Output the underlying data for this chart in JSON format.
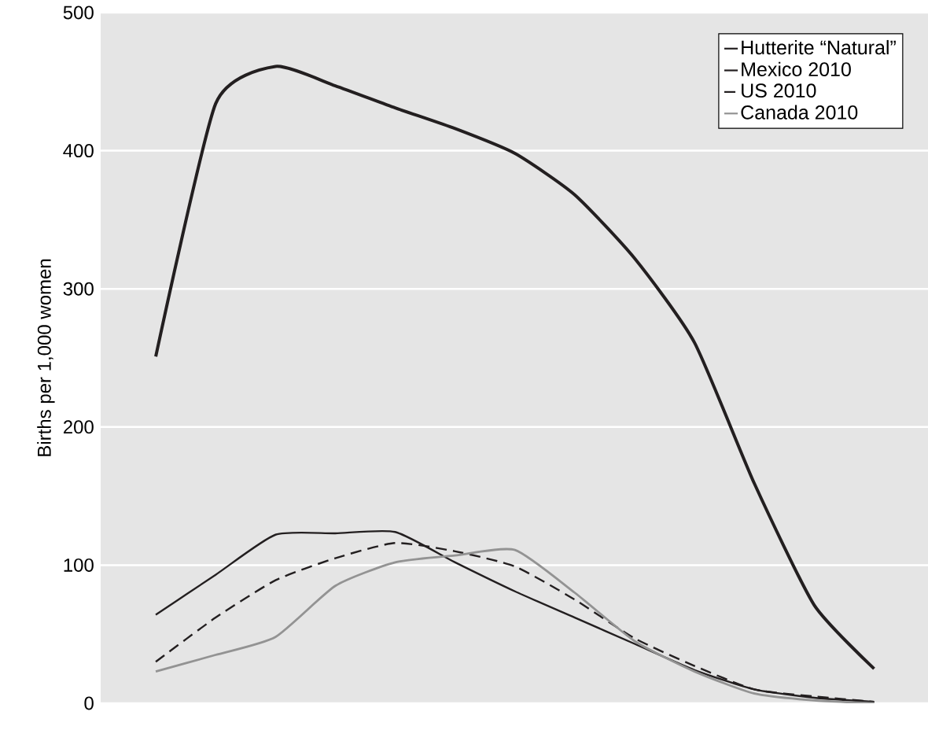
{
  "chart_data": {
    "type": "line",
    "ylabel": "Births per 1,000 women",
    "categories": [
      null,
      null,
      null,
      null,
      null,
      null,
      null,
      null,
      null,
      null,
      null,
      null,
      null
    ],
    "series": [
      {
        "name": "Hutterite “Natural”",
        "color": "#231f20",
        "values": [
          251,
          434,
          461,
          447,
          431,
          416,
          398,
          368,
          322,
          261,
          159,
          71,
          25
        ]
      },
      {
        "name": "Mexico 2010",
        "color": "#231f20",
        "values": [
          64,
          93,
          122,
          123,
          124,
          102,
          81,
          62,
          43,
          24,
          10,
          4,
          1
        ]
      },
      {
        "name": "US 2010",
        "color": "#231f20",
        "line_style": "dashed",
        "values": [
          30,
          62,
          89,
          105,
          116,
          110,
          99,
          75,
          47,
          27,
          10,
          5,
          1
        ]
      },
      {
        "name": "Canada 2010",
        "color": "#939393",
        "values": [
          23,
          35,
          48,
          85,
          102,
          107,
          111,
          80,
          45,
          23,
          7,
          2,
          0
        ]
      }
    ],
    "ylim": [
      0,
      500
    ],
    "yticks": [
      0,
      100,
      200,
      300,
      400,
      500
    ],
    "grid": "y",
    "legend": "top right",
    "tick_labels": "y"
  }
}
